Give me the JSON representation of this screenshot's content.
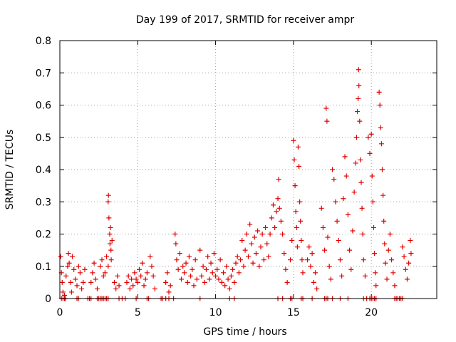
{
  "chart_data": {
    "type": "scatter",
    "title": "Day 199 of 2017, SRMTID for receiver ampr",
    "xlabel": "GPS time / hours",
    "ylabel": "SRMTID / TECUs",
    "xlim": [
      0,
      24.2
    ],
    "ylim": [
      0,
      0.8
    ],
    "xticks": [
      0,
      5,
      10,
      15,
      20
    ],
    "xtick_labels": [
      "0",
      "5",
      "10",
      "15",
      "20"
    ],
    "yticks": [
      0,
      0.1,
      0.2,
      0.3,
      0.4,
      0.5,
      0.6,
      0.7,
      0.8
    ],
    "ytick_labels": [
      "0",
      "0.1",
      "0.2",
      "0.3",
      "0.4",
      "0.5",
      "0.6",
      "0.7",
      "0.8"
    ],
    "grid": true,
    "marker": "+",
    "color": "#e00000",
    "series": [
      {
        "name": "SRMTID",
        "points": [
          [
            0.05,
            0.13
          ],
          [
            0.1,
            0.08
          ],
          [
            0.15,
            0.05
          ],
          [
            0.2,
            0.02
          ],
          [
            0.3,
            0.01
          ],
          [
            0.4,
            0.07
          ],
          [
            0.5,
            0.1
          ],
          [
            0.55,
            0.14
          ],
          [
            0.6,
            0.11
          ],
          [
            0.7,
            0.05
          ],
          [
            0.75,
            0.02
          ],
          [
            0.8,
            0.13
          ],
          [
            0.9,
            0.09
          ],
          [
            1.0,
            0.06
          ],
          [
            1.1,
            0.04
          ],
          [
            1.2,
            0.1
          ],
          [
            1.3,
            0.08
          ],
          [
            1.4,
            0.03
          ],
          [
            1.5,
            0.05
          ],
          [
            1.6,
            0.09
          ],
          [
            2.0,
            0.05
          ],
          [
            2.1,
            0.08
          ],
          [
            2.2,
            0.11
          ],
          [
            2.3,
            0.06
          ],
          [
            2.4,
            0.03
          ],
          [
            2.6,
            0.1
          ],
          [
            2.7,
            0.12
          ],
          [
            2.8,
            0.07
          ],
          [
            2.9,
            0.08
          ],
          [
            3.0,
            0.13
          ],
          [
            3.1,
            0.3
          ],
          [
            3.12,
            0.32
          ],
          [
            3.15,
            0.25
          ],
          [
            3.2,
            0.2
          ],
          [
            3.22,
            0.17
          ],
          [
            3.25,
            0.22
          ],
          [
            3.28,
            0.15
          ],
          [
            3.3,
            0.12
          ],
          [
            3.35,
            0.18
          ],
          [
            3.1,
            0.1
          ],
          [
            3.5,
            0.05
          ],
          [
            3.6,
            0.03
          ],
          [
            3.7,
            0.07
          ],
          [
            3.8,
            0.04
          ],
          [
            4.3,
            0.05
          ],
          [
            4.4,
            0.07
          ],
          [
            4.5,
            0.03
          ],
          [
            4.6,
            0.06
          ],
          [
            4.7,
            0.04
          ],
          [
            4.8,
            0.08
          ],
          [
            4.9,
            0.06
          ],
          [
            5.0,
            0.05
          ],
          [
            5.1,
            0.09
          ],
          [
            5.2,
            0.07
          ],
          [
            5.3,
            0.11
          ],
          [
            5.4,
            0.04
          ],
          [
            5.5,
            0.06
          ],
          [
            5.6,
            0.08
          ],
          [
            5.8,
            0.13
          ],
          [
            5.9,
            0.1
          ],
          [
            6.0,
            0.07
          ],
          [
            6.1,
            0.03
          ],
          [
            6.8,
            0.05
          ],
          [
            6.9,
            0.08
          ],
          [
            7.0,
            0.02
          ],
          [
            7.1,
            0.04
          ],
          [
            7.4,
            0.2
          ],
          [
            7.45,
            0.17
          ],
          [
            7.5,
            0.12
          ],
          [
            7.6,
            0.09
          ],
          [
            7.7,
            0.14
          ],
          [
            7.8,
            0.06
          ],
          [
            7.9,
            0.1
          ],
          [
            8.0,
            0.08
          ],
          [
            8.1,
            0.11
          ],
          [
            8.2,
            0.05
          ],
          [
            8.3,
            0.13
          ],
          [
            8.4,
            0.07
          ],
          [
            8.5,
            0.09
          ],
          [
            8.6,
            0.04
          ],
          [
            8.7,
            0.12
          ],
          [
            8.8,
            0.06
          ],
          [
            9.0,
            0.15
          ],
          [
            9.1,
            0.07
          ],
          [
            9.2,
            0.1
          ],
          [
            9.3,
            0.05
          ],
          [
            9.4,
            0.09
          ],
          [
            9.5,
            0.13
          ],
          [
            9.6,
            0.06
          ],
          [
            9.7,
            0.11
          ],
          [
            9.8,
            0.08
          ],
          [
            9.9,
            0.14
          ],
          [
            10.0,
            0.07
          ],
          [
            10.1,
            0.09
          ],
          [
            10.2,
            0.06
          ],
          [
            10.3,
            0.12
          ],
          [
            10.4,
            0.05
          ],
          [
            10.5,
            0.08
          ],
          [
            10.6,
            0.04
          ],
          [
            10.7,
            0.1
          ],
          [
            10.8,
            0.06
          ],
          [
            10.9,
            0.03
          ],
          [
            11.0,
            0.07
          ],
          [
            11.1,
            0.09
          ],
          [
            11.2,
            0.05
          ],
          [
            11.3,
            0.11
          ],
          [
            11.4,
            0.13
          ],
          [
            11.5,
            0.08
          ],
          [
            11.6,
            0.12
          ],
          [
            11.7,
            0.18
          ],
          [
            11.8,
            0.1
          ],
          [
            11.9,
            0.15
          ],
          [
            12.0,
            0.2
          ],
          [
            12.1,
            0.13
          ],
          [
            12.2,
            0.23
          ],
          [
            12.3,
            0.17
          ],
          [
            12.4,
            0.11
          ],
          [
            12.5,
            0.19
          ],
          [
            12.6,
            0.14
          ],
          [
            12.7,
            0.21
          ],
          [
            12.8,
            0.1
          ],
          [
            12.9,
            0.16
          ],
          [
            13.0,
            0.2
          ],
          [
            13.1,
            0.12
          ],
          [
            13.2,
            0.22
          ],
          [
            13.3,
            0.17
          ],
          [
            13.4,
            0.13
          ],
          [
            13.5,
            0.2
          ],
          [
            13.6,
            0.25
          ],
          [
            13.7,
            0.29
          ],
          [
            13.8,
            0.22
          ],
          [
            13.9,
            0.27
          ],
          [
            14.0,
            0.31
          ],
          [
            14.05,
            0.37
          ],
          [
            14.1,
            0.28
          ],
          [
            14.2,
            0.24
          ],
          [
            14.3,
            0.2
          ],
          [
            14.4,
            0.14
          ],
          [
            14.5,
            0.09
          ],
          [
            14.6,
            0.05
          ],
          [
            14.8,
            0.12
          ],
          [
            14.9,
            0.18
          ],
          [
            15.0,
            0.49
          ],
          [
            15.05,
            0.43
          ],
          [
            15.1,
            0.35
          ],
          [
            15.15,
            0.27
          ],
          [
            15.2,
            0.22
          ],
          [
            15.25,
            0.16
          ],
          [
            15.3,
            0.47
          ],
          [
            15.35,
            0.41
          ],
          [
            15.4,
            0.3
          ],
          [
            15.45,
            0.24
          ],
          [
            15.5,
            0.18
          ],
          [
            15.55,
            0.12
          ],
          [
            15.6,
            0.08
          ],
          [
            15.9,
            0.12
          ],
          [
            16.0,
            0.16
          ],
          [
            16.1,
            0.1
          ],
          [
            16.2,
            0.14
          ],
          [
            16.3,
            0.05
          ],
          [
            16.4,
            0.08
          ],
          [
            16.5,
            0.03
          ],
          [
            16.8,
            0.28
          ],
          [
            16.9,
            0.22
          ],
          [
            17.0,
            0.15
          ],
          [
            17.1,
            0.59
          ],
          [
            17.15,
            0.55
          ],
          [
            17.2,
            0.19
          ],
          [
            17.3,
            0.1
          ],
          [
            17.4,
            0.06
          ],
          [
            17.5,
            0.4
          ],
          [
            17.6,
            0.37
          ],
          [
            17.7,
            0.3
          ],
          [
            17.8,
            0.24
          ],
          [
            17.9,
            0.18
          ],
          [
            18.0,
            0.12
          ],
          [
            18.1,
            0.07
          ],
          [
            18.2,
            0.31
          ],
          [
            18.3,
            0.44
          ],
          [
            18.4,
            0.38
          ],
          [
            18.5,
            0.26
          ],
          [
            18.6,
            0.15
          ],
          [
            18.7,
            0.09
          ],
          [
            18.8,
            0.21
          ],
          [
            18.9,
            0.33
          ],
          [
            19.0,
            0.42
          ],
          [
            19.05,
            0.5
          ],
          [
            19.1,
            0.58
          ],
          [
            19.15,
            0.62
          ],
          [
            19.18,
            0.71
          ],
          [
            19.2,
            0.66
          ],
          [
            19.25,
            0.55
          ],
          [
            19.3,
            0.43
          ],
          [
            19.35,
            0.36
          ],
          [
            19.4,
            0.28
          ],
          [
            19.45,
            0.2
          ],
          [
            19.5,
            0.12
          ],
          [
            19.6,
            0.07
          ],
          [
            19.8,
            0.5
          ],
          [
            19.9,
            0.45
          ],
          [
            20.0,
            0.51
          ],
          [
            20.05,
            0.38
          ],
          [
            20.1,
            0.3
          ],
          [
            20.15,
            0.22
          ],
          [
            20.2,
            0.14
          ],
          [
            20.25,
            0.08
          ],
          [
            20.3,
            0.04
          ],
          [
            20.5,
            0.64
          ],
          [
            20.55,
            0.6
          ],
          [
            20.6,
            0.53
          ],
          [
            20.65,
            0.48
          ],
          [
            20.7,
            0.4
          ],
          [
            20.75,
            0.32
          ],
          [
            20.8,
            0.24
          ],
          [
            20.85,
            0.17
          ],
          [
            20.9,
            0.11
          ],
          [
            21.0,
            0.06
          ],
          [
            21.1,
            0.15
          ],
          [
            21.2,
            0.2
          ],
          [
            21.3,
            0.12
          ],
          [
            21.4,
            0.08
          ],
          [
            21.5,
            0.04
          ],
          [
            22.0,
            0.16
          ],
          [
            22.1,
            0.13
          ],
          [
            22.2,
            0.09
          ],
          [
            22.3,
            0.06
          ],
          [
            22.4,
            0.11
          ],
          [
            22.5,
            0.18
          ],
          [
            22.55,
            0.14
          ]
        ]
      }
    ],
    "baseline_points_x": [
      0.1,
      0.2,
      0.3,
      0.35,
      1.1,
      1.2,
      1.8,
      1.9,
      2.0,
      2.4,
      2.5,
      2.6,
      2.7,
      2.8,
      2.9,
      3.0,
      3.1,
      3.8,
      4.0,
      4.2,
      4.9,
      5.6,
      5.7,
      6.5,
      6.6,
      6.8,
      7.0,
      7.3,
      9.0,
      10.9,
      11.2,
      14.0,
      14.3,
      14.8,
      14.9,
      15.5,
      15.6,
      16.2,
      17.0,
      17.1,
      17.2,
      17.5,
      18.0,
      18.5,
      19.5,
      19.7,
      19.9,
      20.0,
      20.1,
      20.2,
      20.3,
      21.5,
      21.6,
      21.7,
      21.8,
      21.9,
      22.0
    ]
  }
}
